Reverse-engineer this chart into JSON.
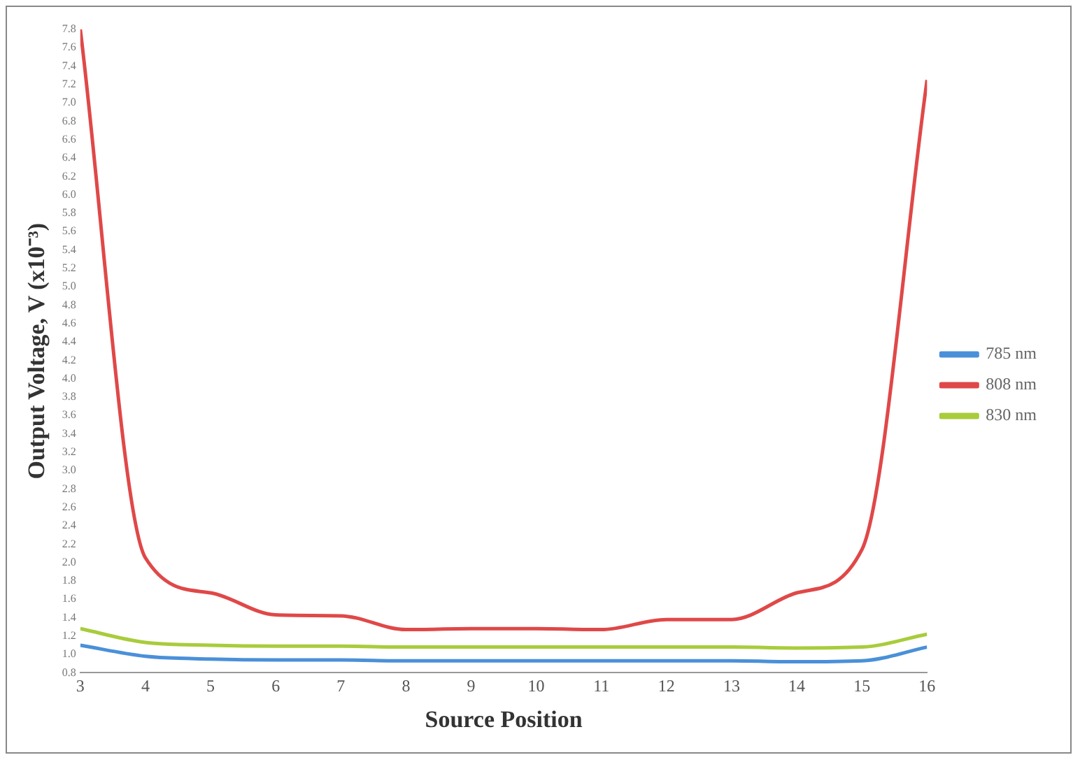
{
  "chart_data": {
    "type": "line",
    "xlabel": "Source Position",
    "ylabel": "Output Voltage, V (x10⁻³)",
    "x": [
      3,
      4,
      5,
      6,
      7,
      8,
      9,
      10,
      11,
      12,
      13,
      14,
      15,
      16
    ],
    "xlim": [
      3,
      16
    ],
    "xticks": [
      3,
      4,
      5,
      6,
      7,
      8,
      9,
      10,
      11,
      12,
      13,
      14,
      15,
      16
    ],
    "ylim": [
      0.8,
      7.8
    ],
    "yticks": [
      0.8,
      {
        "value": 1,
        "label": "1.0"
      },
      1.2,
      1.4,
      1.6,
      1.8,
      {
        "value": 2,
        "label": "2.0"
      },
      2.2,
      2.4,
      2.6,
      2.8,
      {
        "value": 3,
        "label": "3.0"
      },
      3.2,
      3.4,
      3.6,
      3.8,
      {
        "value": 4,
        "label": "4.0"
      },
      4.2,
      4.4,
      4.6,
      4.8,
      {
        "value": 5,
        "label": "5.0"
      },
      5.2,
      5.4,
      5.6,
      5.8,
      {
        "value": 6,
        "label": "6.0"
      },
      6.2,
      6.4,
      6.6,
      6.8,
      {
        "value": 7,
        "label": "7.0"
      },
      7.2,
      7.4,
      7.6,
      7.8
    ],
    "series": [
      {
        "name": "785 nm",
        "color": "#4a90d9",
        "values": [
          1.1,
          0.98,
          0.95,
          0.94,
          0.94,
          0.93,
          0.93,
          0.93,
          0.93,
          0.93,
          0.93,
          0.92,
          0.93,
          1.08
        ]
      },
      {
        "name": "808 nm",
        "color": "#e04848",
        "values": [
          7.8,
          2.05,
          1.67,
          1.43,
          1.42,
          1.27,
          1.28,
          1.28,
          1.27,
          1.38,
          1.38,
          1.67,
          2.14,
          7.25
        ]
      },
      {
        "name": "830 nm",
        "color": "#a8cc3c",
        "values": [
          1.28,
          1.13,
          1.1,
          1.09,
          1.09,
          1.08,
          1.08,
          1.08,
          1.08,
          1.08,
          1.08,
          1.07,
          1.08,
          1.22
        ]
      }
    ],
    "grid": false,
    "legend": "right",
    "marker": "none",
    "line_style": "solid"
  }
}
